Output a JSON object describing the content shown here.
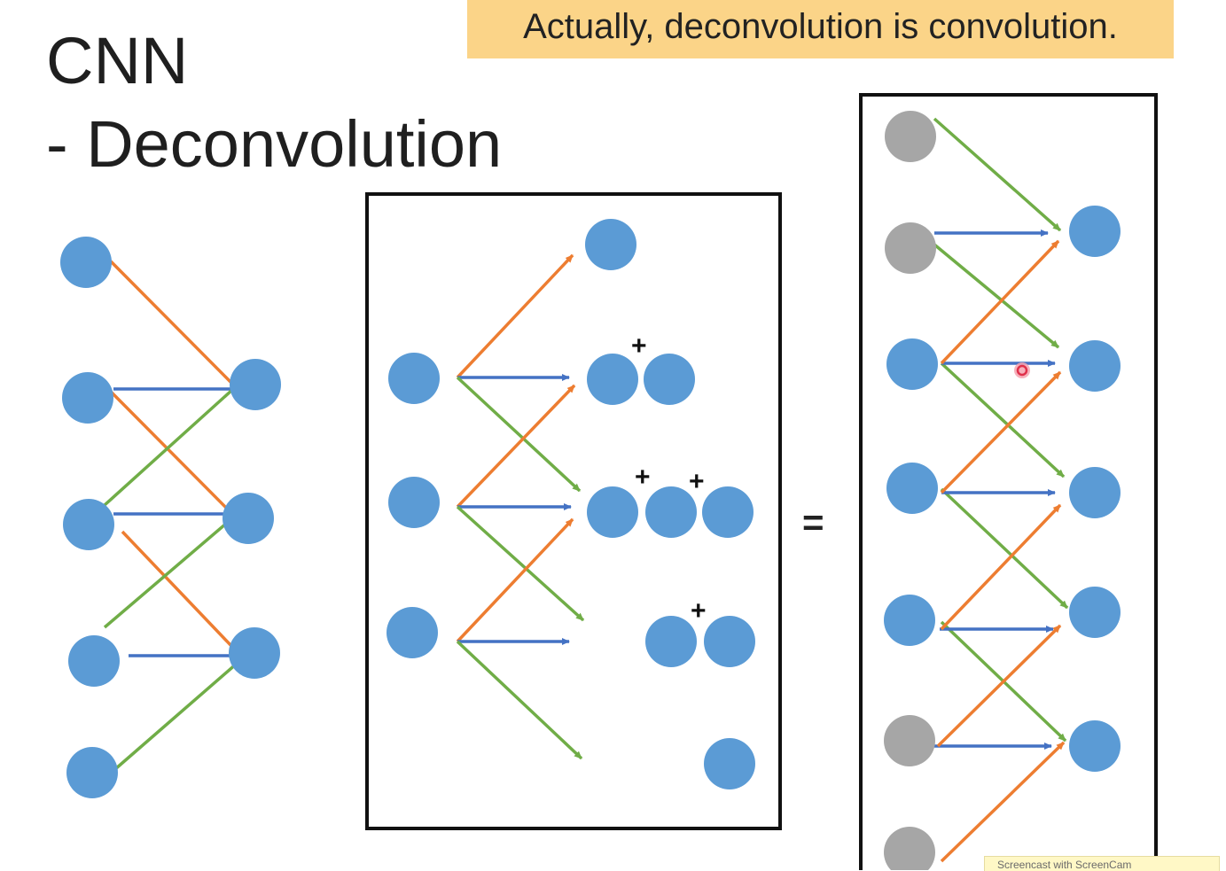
{
  "title": {
    "line1": "CNN",
    "line2": "- Deconvolution"
  },
  "callout": "Actually, deconvolution is convolution.",
  "operator": "=",
  "plus_sign": "+",
  "watermark": "Screencast with ScreenCam",
  "colors": {
    "node_active": "#5b9bd5",
    "node_padding": "#a6a6a6",
    "edge_orange": "#ed7d31",
    "edge_blue": "#4472c4",
    "edge_green": "#70ad47",
    "callout_bg": "#fbd488",
    "cursor_marker": "#e0304a"
  },
  "panels": [
    {
      "name": "convolution",
      "framed": false,
      "inputs": 5,
      "outputs": 3
    },
    {
      "name": "deconvolution-expanded",
      "framed": true,
      "inputs": 3,
      "outputs": 9
    },
    {
      "name": "deconvolution-as-convolution",
      "framed": true,
      "inputs": 7,
      "padded_inputs": [
        0,
        1,
        5,
        6
      ],
      "outputs": 5
    }
  ]
}
